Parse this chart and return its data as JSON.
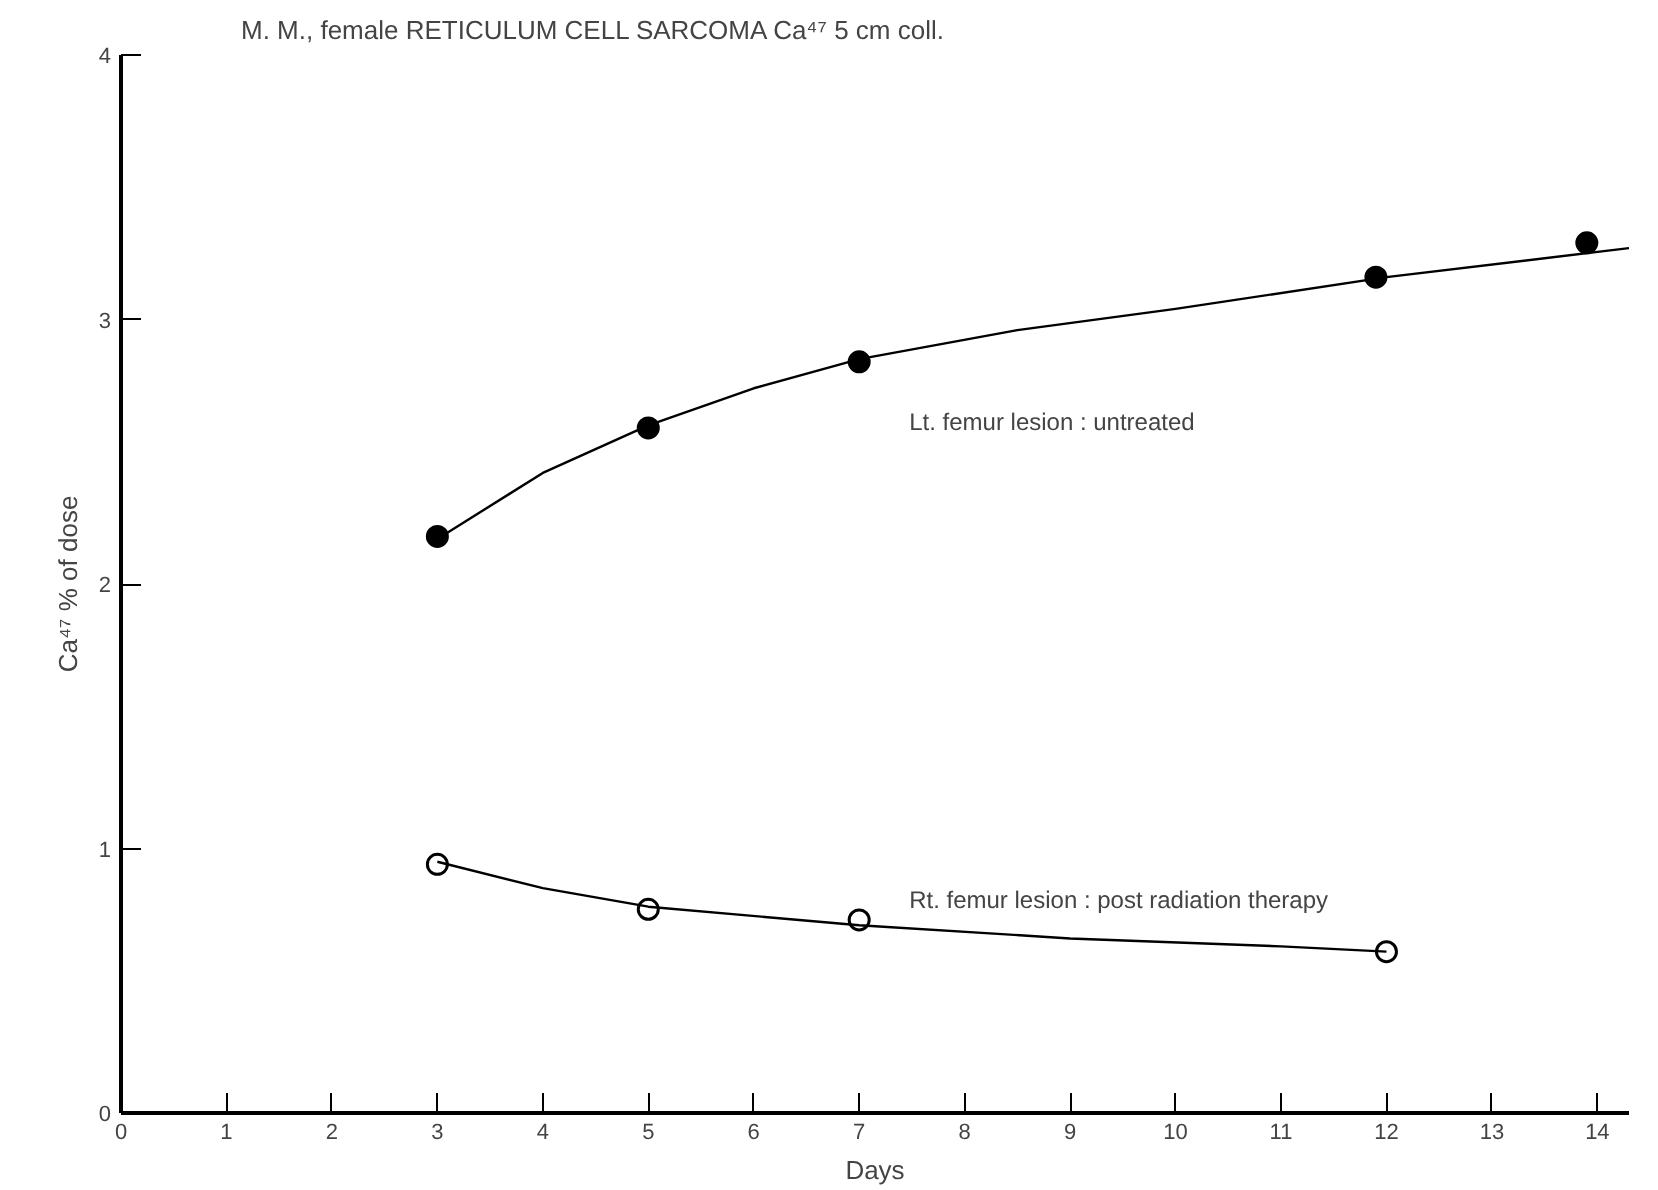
{
  "chart_data": {
    "type": "scatter",
    "title": "M. M.,  female  RETICULUM CELL SARCOMA   Ca⁴⁷ 5 cm coll.",
    "xlabel": "Days",
    "ylabel": "Ca⁴⁷ % of dose",
    "xlim": [
      0,
      14.3
    ],
    "ylim": [
      0,
      4
    ],
    "xticks": [
      0,
      1,
      2,
      3,
      4,
      5,
      6,
      7,
      8,
      9,
      10,
      11,
      12,
      13,
      14
    ],
    "yticks": [
      0,
      1,
      2,
      3,
      4
    ],
    "grid": false,
    "series": [
      {
        "marker": "circle",
        "color": "#000000",
        "x": [
          3,
          5,
          7,
          11.9,
          13.9
        ],
        "values": [
          2.18,
          2.59,
          2.84,
          3.16,
          3.29
        ]
      },
      {
        "marker": "circle_open",
        "color": "#000000",
        "x": [
          3,
          5,
          7,
          12
        ],
        "values": [
          0.94,
          0.77,
          0.73,
          0.61
        ]
      },
      {
        "type": "line",
        "marker": "none",
        "color": "#000000",
        "x": [
          3,
          4,
          5,
          6,
          7,
          8.5,
          10,
          12,
          14.3
        ],
        "values": [
          2.17,
          2.42,
          2.6,
          2.74,
          2.85,
          2.96,
          3.04,
          3.16,
          3.27
        ]
      },
      {
        "type": "line",
        "marker": "none",
        "color": "#000000",
        "x": [
          3,
          4,
          5,
          7,
          9,
          11,
          12
        ],
        "values": [
          0.95,
          0.85,
          0.78,
          0.71,
          0.66,
          0.63,
          0.61
        ]
      }
    ],
    "annotations": [
      "Lt. femur lesion : untreated",
      "Rt. femur lesion : post radiation therapy"
    ]
  }
}
